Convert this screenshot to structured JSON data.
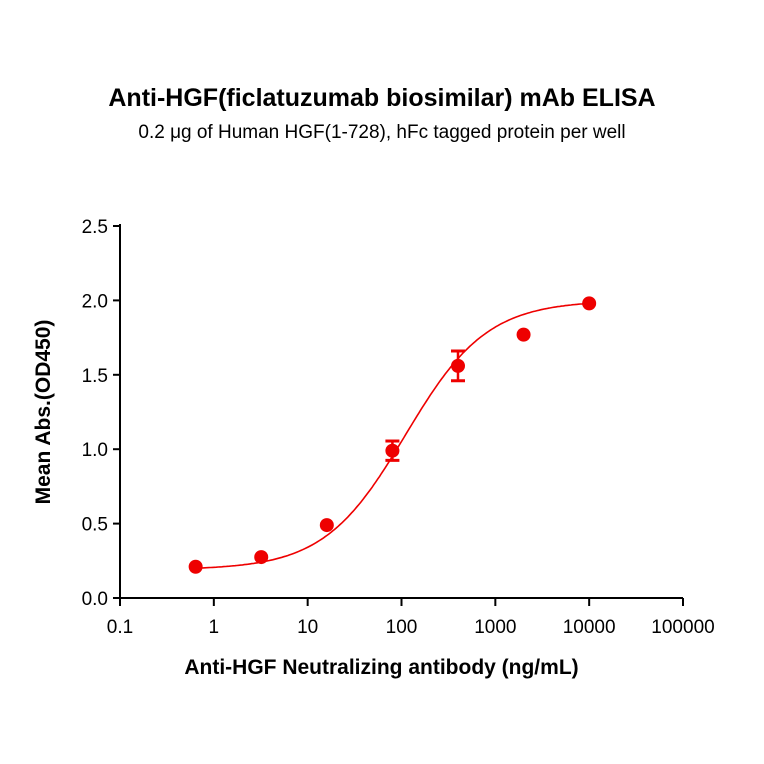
{
  "chart_data": {
    "type": "scatter",
    "title": "Anti-HGF(ficlatuzumab biosimilar) mAb ELISA",
    "subtitle": "0.2 μg of Human HGF(1-728), hFc tagged protein per well",
    "xlabel": "Anti-HGF Neutralizing antibody (ng/mL)",
    "ylabel": "Mean Abs.(OD450)",
    "xscale": "log",
    "xlim": [
      0.1,
      100000
    ],
    "ylim": [
      0,
      2.5
    ],
    "xticks": [
      "0.1",
      "1",
      "10",
      "100",
      "1000",
      "10000",
      "100000"
    ],
    "yticks": [
      "0.0",
      "0.5",
      "1.0",
      "1.5",
      "2.0",
      "2.5"
    ],
    "series": [
      {
        "name": "Anti-HGF",
        "color": "#ee0000",
        "x": [
          0.64,
          3.2,
          16,
          80,
          400,
          2000,
          10000
        ],
        "y": [
          0.21,
          0.275,
          0.49,
          0.99,
          1.56,
          1.77,
          1.98
        ],
        "error": [
          0.01,
          0.01,
          0.01,
          0.065,
          0.1,
          0.01,
          0.01
        ],
        "fit": {
          "model": "4PL",
          "bottom": 0.19,
          "top": 2.0,
          "ec50": 110,
          "hill": 1.0
        }
      }
    ]
  }
}
